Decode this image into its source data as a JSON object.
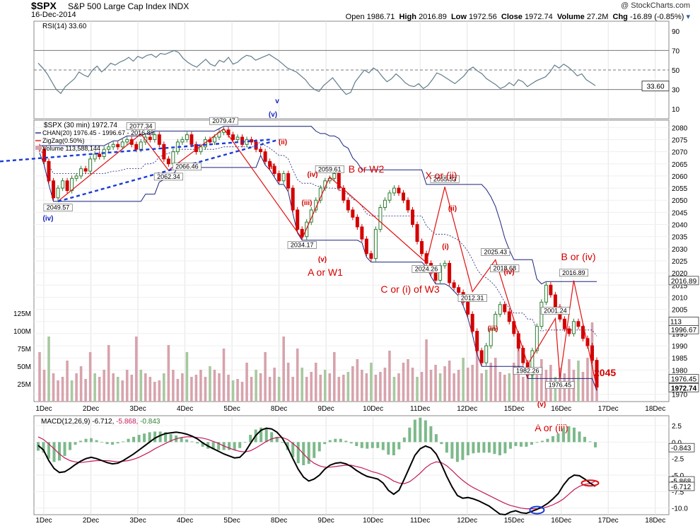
{
  "header": {
    "symbol": "$SPX",
    "name": "S&P 500 Large Cap Index  INDX",
    "date": "16-Dec-2014",
    "brand": "@ StockCharts.com",
    "open_label": "Open",
    "open": "1986.71",
    "high_label": "High",
    "high": "2016.89",
    "low_label": "Low",
    "low": "1972.56",
    "close_label": "Close",
    "close": "1972.74",
    "volume_label": "Volume",
    "volume": "27.2M",
    "chg_label": "Chg",
    "chg": "-16.89 (-0.85%)"
  },
  "legends": {
    "rsi": "RSI(14) 33.60",
    "price": "$SPX (30 min) 1972.74",
    "chan": "CHAN(20) 1976.45 - 1996.67 - 2016.89",
    "zigzag": "ZigZag(0.50%)",
    "volume": "Volume 113,588,144",
    "macd_prefix": "MACD(12,26,9)",
    "macd_v1": "-6.712",
    "macd_v2": "-5.868",
    "macd_v3": "-0.843"
  },
  "colors": {
    "up_bar": "#2e7d32",
    "down_bar": "#d40000",
    "channel": "#1a237e",
    "zigzag": "#e01010",
    "trendline": "#1a3bd6",
    "volume": "#d7a3ad",
    "rsi_line": "#607d8b",
    "macd_line": "#000000",
    "signal_line": "#c2185b",
    "histogram": "#7cb98a",
    "annotation": "#d40000"
  },
  "chart_data": [
    {
      "type": "line",
      "panel": "RSI(14)",
      "y_ticks": [
        "90",
        "70",
        "50",
        "30",
        "10"
      ],
      "ylim": [
        0,
        100
      ],
      "reference_lines": [
        70,
        50,
        30
      ],
      "last_value": "33.60",
      "values": [
        57,
        52,
        46,
        38,
        30,
        26,
        33,
        37,
        41,
        48,
        45,
        43,
        50,
        54,
        48,
        52,
        57,
        55,
        58,
        60,
        63,
        59,
        64,
        62,
        65,
        66,
        63,
        67,
        66,
        68,
        70,
        68,
        62,
        58,
        55,
        53,
        57,
        61,
        56,
        54,
        60,
        58,
        63,
        56,
        58,
        62,
        65,
        64,
        60,
        62,
        64,
        66,
        63,
        60,
        56,
        52,
        50,
        48,
        44,
        40,
        34,
        30,
        28,
        34,
        38,
        42,
        36,
        30,
        25,
        27,
        38,
        44,
        50,
        47,
        52,
        49,
        43,
        38,
        41,
        46,
        42,
        37,
        34,
        33,
        36,
        31,
        34,
        40,
        47,
        45,
        42,
        39,
        36,
        40,
        44,
        50,
        53,
        49,
        46,
        41,
        38,
        35,
        31,
        33,
        37,
        34,
        40,
        38,
        33,
        36,
        39,
        41,
        43,
        48,
        55,
        52,
        56,
        53,
        49,
        44,
        46,
        40,
        37,
        34
      ]
    },
    {
      "type": "candlestick",
      "panel": "$SPX (30 min)",
      "ylim": [
        1967,
        2083
      ],
      "y_ticks": [
        "2080",
        "2075",
        "2070",
        "2065",
        "2060",
        "2055",
        "2050",
        "2045",
        "2040",
        "2035",
        "2030",
        "2025",
        "2020",
        "2015",
        "2010",
        "2005",
        "2000",
        "1995",
        "1990",
        "1985",
        "1980",
        "1975",
        "1970"
      ],
      "right_labels": [
        "2016.89",
        "1996.67",
        "1976.45",
        "1972.74"
      ],
      "x_ticks": [
        "1Dec",
        "2Dec",
        "3Dec",
        "4Dec",
        "5Dec",
        "8Dec",
        "9Dec",
        "10Dec",
        "11Dec",
        "12Dec",
        "15Dec",
        "16Dec",
        "17Dec",
        "18Dec"
      ],
      "closes": [
        2071,
        2066,
        2058,
        2051,
        2055,
        2058,
        2054,
        2059,
        2060,
        2063,
        2062,
        2067,
        2069,
        2068,
        2071,
        2072,
        2073,
        2072,
        2074,
        2075,
        2073,
        2071,
        2074,
        2076,
        2075,
        2077,
        2073,
        2067,
        2065,
        2070,
        2074,
        2075,
        2077,
        2073,
        2070,
        2072,
        2075,
        2074,
        2076,
        2078,
        2079,
        2077,
        2075,
        2076,
        2073,
        2075,
        2074,
        2071,
        2070,
        2066,
        2064,
        2061,
        2058,
        2061,
        2055,
        2046,
        2038,
        2035,
        2041,
        2046,
        2050,
        2055,
        2058,
        2059,
        2061,
        2055,
        2050,
        2046,
        2043,
        2039,
        2034,
        2028,
        2026,
        2038,
        2047,
        2050,
        2053,
        2055,
        2053,
        2050,
        2046,
        2040,
        2033,
        2028,
        2024,
        2020,
        2017,
        2023,
        2024,
        2016,
        2014,
        2012,
        2008,
        2003,
        1996,
        1988,
        1983,
        1990,
        1997,
        2003,
        2007,
        2004,
        2000,
        1995,
        1989,
        1983,
        1978,
        1988,
        1998,
        2008,
        2015,
        2011,
        2006,
        2001,
        1997,
        1995,
        2000,
        1998,
        1993,
        1990,
        1984,
        1973
      ],
      "zigzag": [
        {
          "x": "2Dec 10:00",
          "y": 2049.57
        },
        {
          "x": "4Dec 12:00",
          "y": 2077.34
        },
        {
          "x": "4Dec 15:30",
          "y": 2062.34
        },
        {
          "x": "5Dec 10:30",
          "y": 2079.47
        },
        {
          "x": "9Dec 10:00",
          "y": 2034.17
        },
        {
          "x": "10Dec 10:00",
          "y": 2059.61
        },
        {
          "x": "10Dec 15:30",
          "y": 2024.26
        },
        {
          "x": "11Dec 12:00",
          "y": 2055.53
        },
        {
          "x": "12Dec 15:30",
          "y": 2012.31
        },
        {
          "x": "15Dec 10:30",
          "y": 2025.43
        },
        {
          "x": "15Dec 15:30",
          "y": 1982.26
        },
        {
          "x": "16Dec 09:30",
          "y": 2001.24
        },
        {
          "x": "16Dec 11:00",
          "y": 1976.45
        },
        {
          "x": "16Dec 13:00",
          "y": 2016.89
        },
        {
          "x": "16Dec 16:00",
          "y": 1972.74
        }
      ],
      "point_labels": [
        "2049.57",
        "2077.34",
        "2062.34",
        "2066.46",
        "2079.47",
        "2034.17",
        "2059.61",
        "2024.26",
        "2055.53",
        "2025.43",
        "2018.68",
        "2012.31",
        "2001.24",
        "1982.26",
        "1976.45",
        "2016.89"
      ],
      "annotations": [
        "A or W1",
        "B or W2",
        "X or (ii)",
        "C or (i) of W3",
        "B or (iv)",
        "A or (iii)",
        "2045",
        "(v)",
        "(iv)",
        "(iii)",
        "(ii)",
        "(i)",
        "v"
      ]
    },
    {
      "type": "bar",
      "panel": "Volume",
      "y_ticks": [
        "125M",
        "100M",
        "75M",
        "50M",
        "25M"
      ],
      "values_m": [
        70,
        45,
        92,
        40,
        30,
        35,
        58,
        30,
        40,
        50,
        32,
        70,
        40,
        35,
        45,
        80,
        40,
        35,
        30,
        45,
        38,
        92,
        45,
        40,
        35,
        28,
        30,
        40,
        80,
        45,
        32,
        40,
        70,
        35,
        38,
        45,
        35,
        50,
        45,
        40,
        75,
        38,
        30,
        32,
        28,
        55,
        35,
        45,
        40,
        70,
        35,
        48,
        35,
        92,
        55,
        35,
        75,
        48,
        35,
        42,
        55,
        38,
        45,
        40,
        70,
        35,
        38,
        42,
        50,
        60,
        45,
        40,
        55,
        38,
        42,
        48,
        72,
        35,
        40,
        55,
        60,
        48,
        35,
        42,
        88,
        45,
        52,
        40,
        50,
        58,
        40,
        45,
        62,
        48,
        52,
        85,
        40,
        45,
        55,
        62,
        42,
        38,
        40,
        55,
        75,
        35,
        45,
        50,
        38,
        60,
        45,
        52,
        35,
        48,
        40,
        60,
        45,
        58,
        42,
        62,
        112,
        27
      ]
    },
    {
      "type": "line",
      "panel": "MACD(12,26,9)",
      "y_ticks": [
        "2.5",
        "0.0",
        "-2.5",
        "-5.0",
        "-7.5",
        "-10.0"
      ],
      "ylim": [
        -11,
        4
      ],
      "right_labels": [
        "-0.843",
        "-5.868",
        "-6.712"
      ],
      "series": [
        {
          "name": "MACD",
          "values": [
            -0.5,
            -1.2,
            -2.8,
            -4.0,
            -4.6,
            -4.5,
            -4.0,
            -3.4,
            -2.9,
            -2.5,
            -2.3,
            -2.5,
            -2.8,
            -3.1,
            -3.3,
            -3.2,
            -2.8,
            -2.3,
            -1.8,
            -1.2,
            -0.6,
            0.0,
            0.6,
            1.0,
            1.3,
            1.4,
            1.5,
            1.4,
            1.2,
            0.9,
            0.5,
            -0.1,
            -0.6,
            -1.0,
            -1.4,
            -1.8,
            -2.1,
            -2.4,
            -2.3,
            -1.5,
            -0.2,
            1.0,
            1.8,
            2.1,
            2.0,
            1.5,
            0.6,
            -0.8,
            -2.5,
            -4.1,
            -5.3,
            -5.9,
            -5.6,
            -5.0,
            -4.1,
            -3.5,
            -3.2,
            -3.1,
            -3.3,
            -3.7,
            -4.3,
            -4.8,
            -5.2,
            -5.4,
            -5.6,
            -6.2,
            -7.3,
            -7.9,
            -7.3,
            -5.6,
            -3.8,
            -2.0,
            -1.0,
            -0.6,
            -0.9,
            -1.8,
            -3.4,
            -5.2,
            -6.8,
            -8.1,
            -8.5,
            -8.4,
            -8.6,
            -8.9,
            -9.3,
            -9.7,
            -10.3,
            -10.9,
            -11.0,
            -10.6,
            -10.4,
            -10.7,
            -10.8,
            -10.5,
            -10.2,
            -9.8,
            -9.3,
            -8.6,
            -7.8,
            -6.5,
            -5.5,
            -5.0,
            -5.1,
            -5.6,
            -6.2,
            -6.7
          ]
        },
        {
          "name": "Signal",
          "values": [
            0.8,
            0.4,
            -0.3,
            -1.0,
            -1.8,
            -2.4,
            -2.8,
            -3.0,
            -3.1,
            -3.0,
            -2.9,
            -2.8,
            -2.8,
            -2.8,
            -2.9,
            -3.0,
            -2.9,
            -2.8,
            -2.6,
            -2.3,
            -1.9,
            -1.5,
            -1.0,
            -0.6,
            -0.2,
            0.2,
            0.5,
            0.7,
            0.8,
            0.8,
            0.7,
            0.6,
            0.4,
            0.1,
            -0.2,
            -0.6,
            -0.9,
            -1.2,
            -1.4,
            -1.5,
            -1.3,
            -0.9,
            -0.4,
            0.1,
            0.5,
            0.7,
            0.7,
            0.4,
            -0.2,
            -0.9,
            -1.8,
            -2.6,
            -3.2,
            -3.6,
            -3.8,
            -3.8,
            -3.7,
            -3.6,
            -3.5,
            -3.5,
            -3.7,
            -3.9,
            -4.2,
            -4.5,
            -4.7,
            -5.0,
            -5.4,
            -5.9,
            -6.2,
            -6.3,
            -6.0,
            -5.4,
            -4.7,
            -3.9,
            -3.3,
            -3.0,
            -3.1,
            -3.6,
            -4.3,
            -5.1,
            -5.8,
            -6.4,
            -6.9,
            -7.3,
            -7.7,
            -8.1,
            -8.5,
            -8.9,
            -9.3,
            -9.6,
            -9.8,
            -10.0,
            -10.1,
            -10.1,
            -10.1,
            -10.0,
            -9.8,
            -9.5,
            -9.1,
            -8.6,
            -7.9,
            -7.2,
            -6.7,
            -6.4,
            -6.3,
            -5.9
          ]
        }
      ]
    }
  ]
}
